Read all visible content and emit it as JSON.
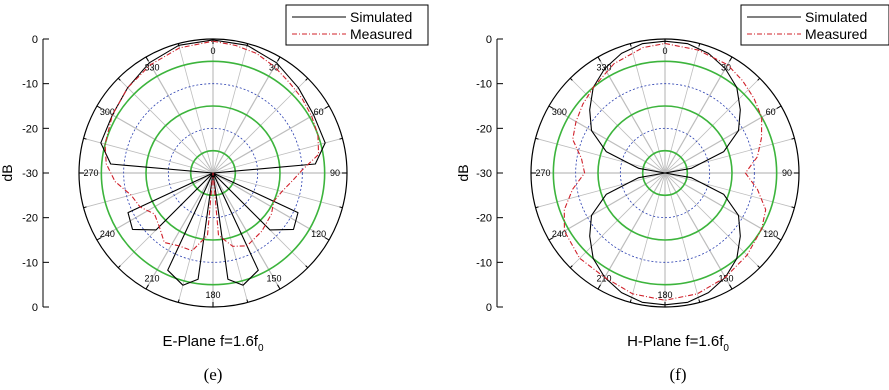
{
  "chart_data": [
    {
      "type": "polar-line",
      "panel_label": "(e)",
      "title_prefix": "E-Plane f=1.6f",
      "title_sub": "0",
      "ylabel": "dB",
      "r_ticks": [
        "0",
        "-10",
        "-20",
        "-30",
        "-20",
        "-10",
        "0"
      ],
      "rlim": [
        -30,
        0
      ],
      "angle_ticks": [
        "0",
        "30",
        "60",
        "90",
        "120",
        "150",
        "180",
        "210",
        "240",
        "270",
        "300",
        "330"
      ],
      "legend": {
        "position": "top-right",
        "entries": [
          "Simulated",
          "Measured"
        ]
      },
      "colors": {
        "simulated": "#000000",
        "measured": "#d0202a",
        "ring_green": "#3cb43c",
        "ring_blue": "#2a3fb0",
        "spoke": "#bdbdbd"
      },
      "series": [
        {
          "name": "Simulated",
          "style": "solid",
          "points": [
            [
              0,
              -0.2
            ],
            [
              15,
              -0.4
            ],
            [
              30,
              -1.5
            ],
            [
              45,
              -3
            ],
            [
              60,
              -4
            ],
            [
              75,
              -4
            ],
            [
              85,
              -7
            ],
            [
              90,
              -30
            ],
            [
              95,
              -30
            ],
            [
              105,
              -30
            ],
            [
              115,
              -9
            ],
            [
              125,
              -8
            ],
            [
              135,
              -12
            ],
            [
              145,
              -30
            ],
            [
              155,
              -6
            ],
            [
              165,
              -4
            ],
            [
              172,
              -6
            ],
            [
              176,
              -30
            ],
            [
              180,
              -30
            ],
            [
              184,
              -30
            ],
            [
              188,
              -6
            ],
            [
              195,
              -4
            ],
            [
              205,
              -6
            ],
            [
              215,
              -30
            ],
            [
              225,
              -12
            ],
            [
              235,
              -8
            ],
            [
              245,
              -9
            ],
            [
              255,
              -30
            ],
            [
              265,
              -30
            ],
            [
              270,
              -30
            ],
            [
              275,
              -7
            ],
            [
              285,
              -4
            ],
            [
              300,
              -4
            ],
            [
              315,
              -3
            ],
            [
              330,
              -1.5
            ],
            [
              345,
              -0.4
            ],
            [
              360,
              -0.2
            ]
          ]
        },
        {
          "name": "Measured",
          "style": "dash-dot",
          "points": [
            [
              0,
              -0.5
            ],
            [
              10,
              -1
            ],
            [
              20,
              -1.5
            ],
            [
              30,
              -2.5
            ],
            [
              40,
              -3.5
            ],
            [
              50,
              -4
            ],
            [
              60,
              -4.5
            ],
            [
              70,
              -5
            ],
            [
              80,
              -6
            ],
            [
              88,
              -10
            ],
            [
              95,
              -12
            ],
            [
              105,
              -14
            ],
            [
              115,
              -15
            ],
            [
              125,
              -14
            ],
            [
              140,
              -13
            ],
            [
              155,
              -12
            ],
            [
              165,
              -13
            ],
            [
              175,
              -16
            ],
            [
              180,
              -30
            ],
            [
              185,
              -16
            ],
            [
              195,
              -12
            ],
            [
              205,
              -12
            ],
            [
              215,
              -11
            ],
            [
              225,
              -13
            ],
            [
              235,
              -14
            ],
            [
              245,
              -12
            ],
            [
              255,
              -11
            ],
            [
              265,
              -8
            ],
            [
              275,
              -6
            ],
            [
              285,
              -5
            ],
            [
              300,
              -4
            ],
            [
              315,
              -3
            ],
            [
              330,
              -2
            ],
            [
              345,
              -1
            ],
            [
              360,
              -0.5
            ]
          ]
        }
      ]
    },
    {
      "type": "polar-line",
      "panel_label": "(f)",
      "title_prefix": "H-Plane f=1.6f",
      "title_sub": "0",
      "ylabel": "dB",
      "r_ticks": [
        "0",
        "-10",
        "-20",
        "-30",
        "-20",
        "-10",
        "0"
      ],
      "rlim": [
        -30,
        0
      ],
      "angle_ticks": [
        "0",
        "30",
        "60",
        "90",
        "120",
        "150",
        "180",
        "210",
        "240",
        "270",
        "300",
        "330"
      ],
      "legend": {
        "position": "top-right",
        "entries": [
          "Simulated",
          "Measured"
        ]
      },
      "colors": {
        "simulated": "#000000",
        "measured": "#d0202a",
        "ring_green": "#3cb43c",
        "ring_blue": "#2a3fb0",
        "spoke": "#bdbdbd"
      },
      "series": [
        {
          "name": "Simulated",
          "style": "solid",
          "points": [
            [
              0,
              -0.5
            ],
            [
              10,
              -0.6
            ],
            [
              20,
              -1.5
            ],
            [
              30,
              -3
            ],
            [
              40,
              -5
            ],
            [
              50,
              -8
            ],
            [
              60,
              -11
            ],
            [
              70,
              -16
            ],
            [
              80,
              -24
            ],
            [
              88,
              -30
            ],
            [
              92,
              -30
            ],
            [
              100,
              -24
            ],
            [
              110,
              -16
            ],
            [
              120,
              -11
            ],
            [
              130,
              -8
            ],
            [
              140,
              -5
            ],
            [
              150,
              -3
            ],
            [
              160,
              -1.5
            ],
            [
              170,
              -0.6
            ],
            [
              180,
              -0.5
            ],
            [
              190,
              -0.6
            ],
            [
              200,
              -1.5
            ],
            [
              210,
              -3
            ],
            [
              220,
              -5
            ],
            [
              230,
              -8
            ],
            [
              240,
              -11
            ],
            [
              250,
              -16
            ],
            [
              260,
              -24
            ],
            [
              268,
              -30
            ],
            [
              272,
              -30
            ],
            [
              280,
              -24
            ],
            [
              290,
              -16
            ],
            [
              300,
              -11
            ],
            [
              310,
              -8
            ],
            [
              320,
              -5
            ],
            [
              330,
              -3
            ],
            [
              340,
              -1.5
            ],
            [
              350,
              -0.6
            ],
            [
              360,
              -0.5
            ]
          ]
        },
        {
          "name": "Measured",
          "style": "dash-dot",
          "points": [
            [
              0,
              -1
            ],
            [
              15,
              -1.5
            ],
            [
              30,
              -2
            ],
            [
              40,
              -3
            ],
            [
              50,
              -4
            ],
            [
              60,
              -5
            ],
            [
              70,
              -7
            ],
            [
              80,
              -9
            ],
            [
              90,
              -12
            ],
            [
              100,
              -9
            ],
            [
              110,
              -6
            ],
            [
              120,
              -5
            ],
            [
              135,
              -4
            ],
            [
              150,
              -3
            ],
            [
              165,
              -2
            ],
            [
              180,
              -1.5
            ],
            [
              195,
              -2
            ],
            [
              210,
              -3
            ],
            [
              225,
              -3
            ],
            [
              240,
              -4
            ],
            [
              250,
              -6
            ],
            [
              260,
              -9
            ],
            [
              270,
              -12
            ],
            [
              280,
              -11
            ],
            [
              290,
              -8
            ],
            [
              300,
              -7
            ],
            [
              310,
              -6
            ],
            [
              320,
              -5
            ],
            [
              335,
              -3
            ],
            [
              350,
              -1.5
            ],
            [
              360,
              -1
            ]
          ]
        }
      ]
    }
  ]
}
